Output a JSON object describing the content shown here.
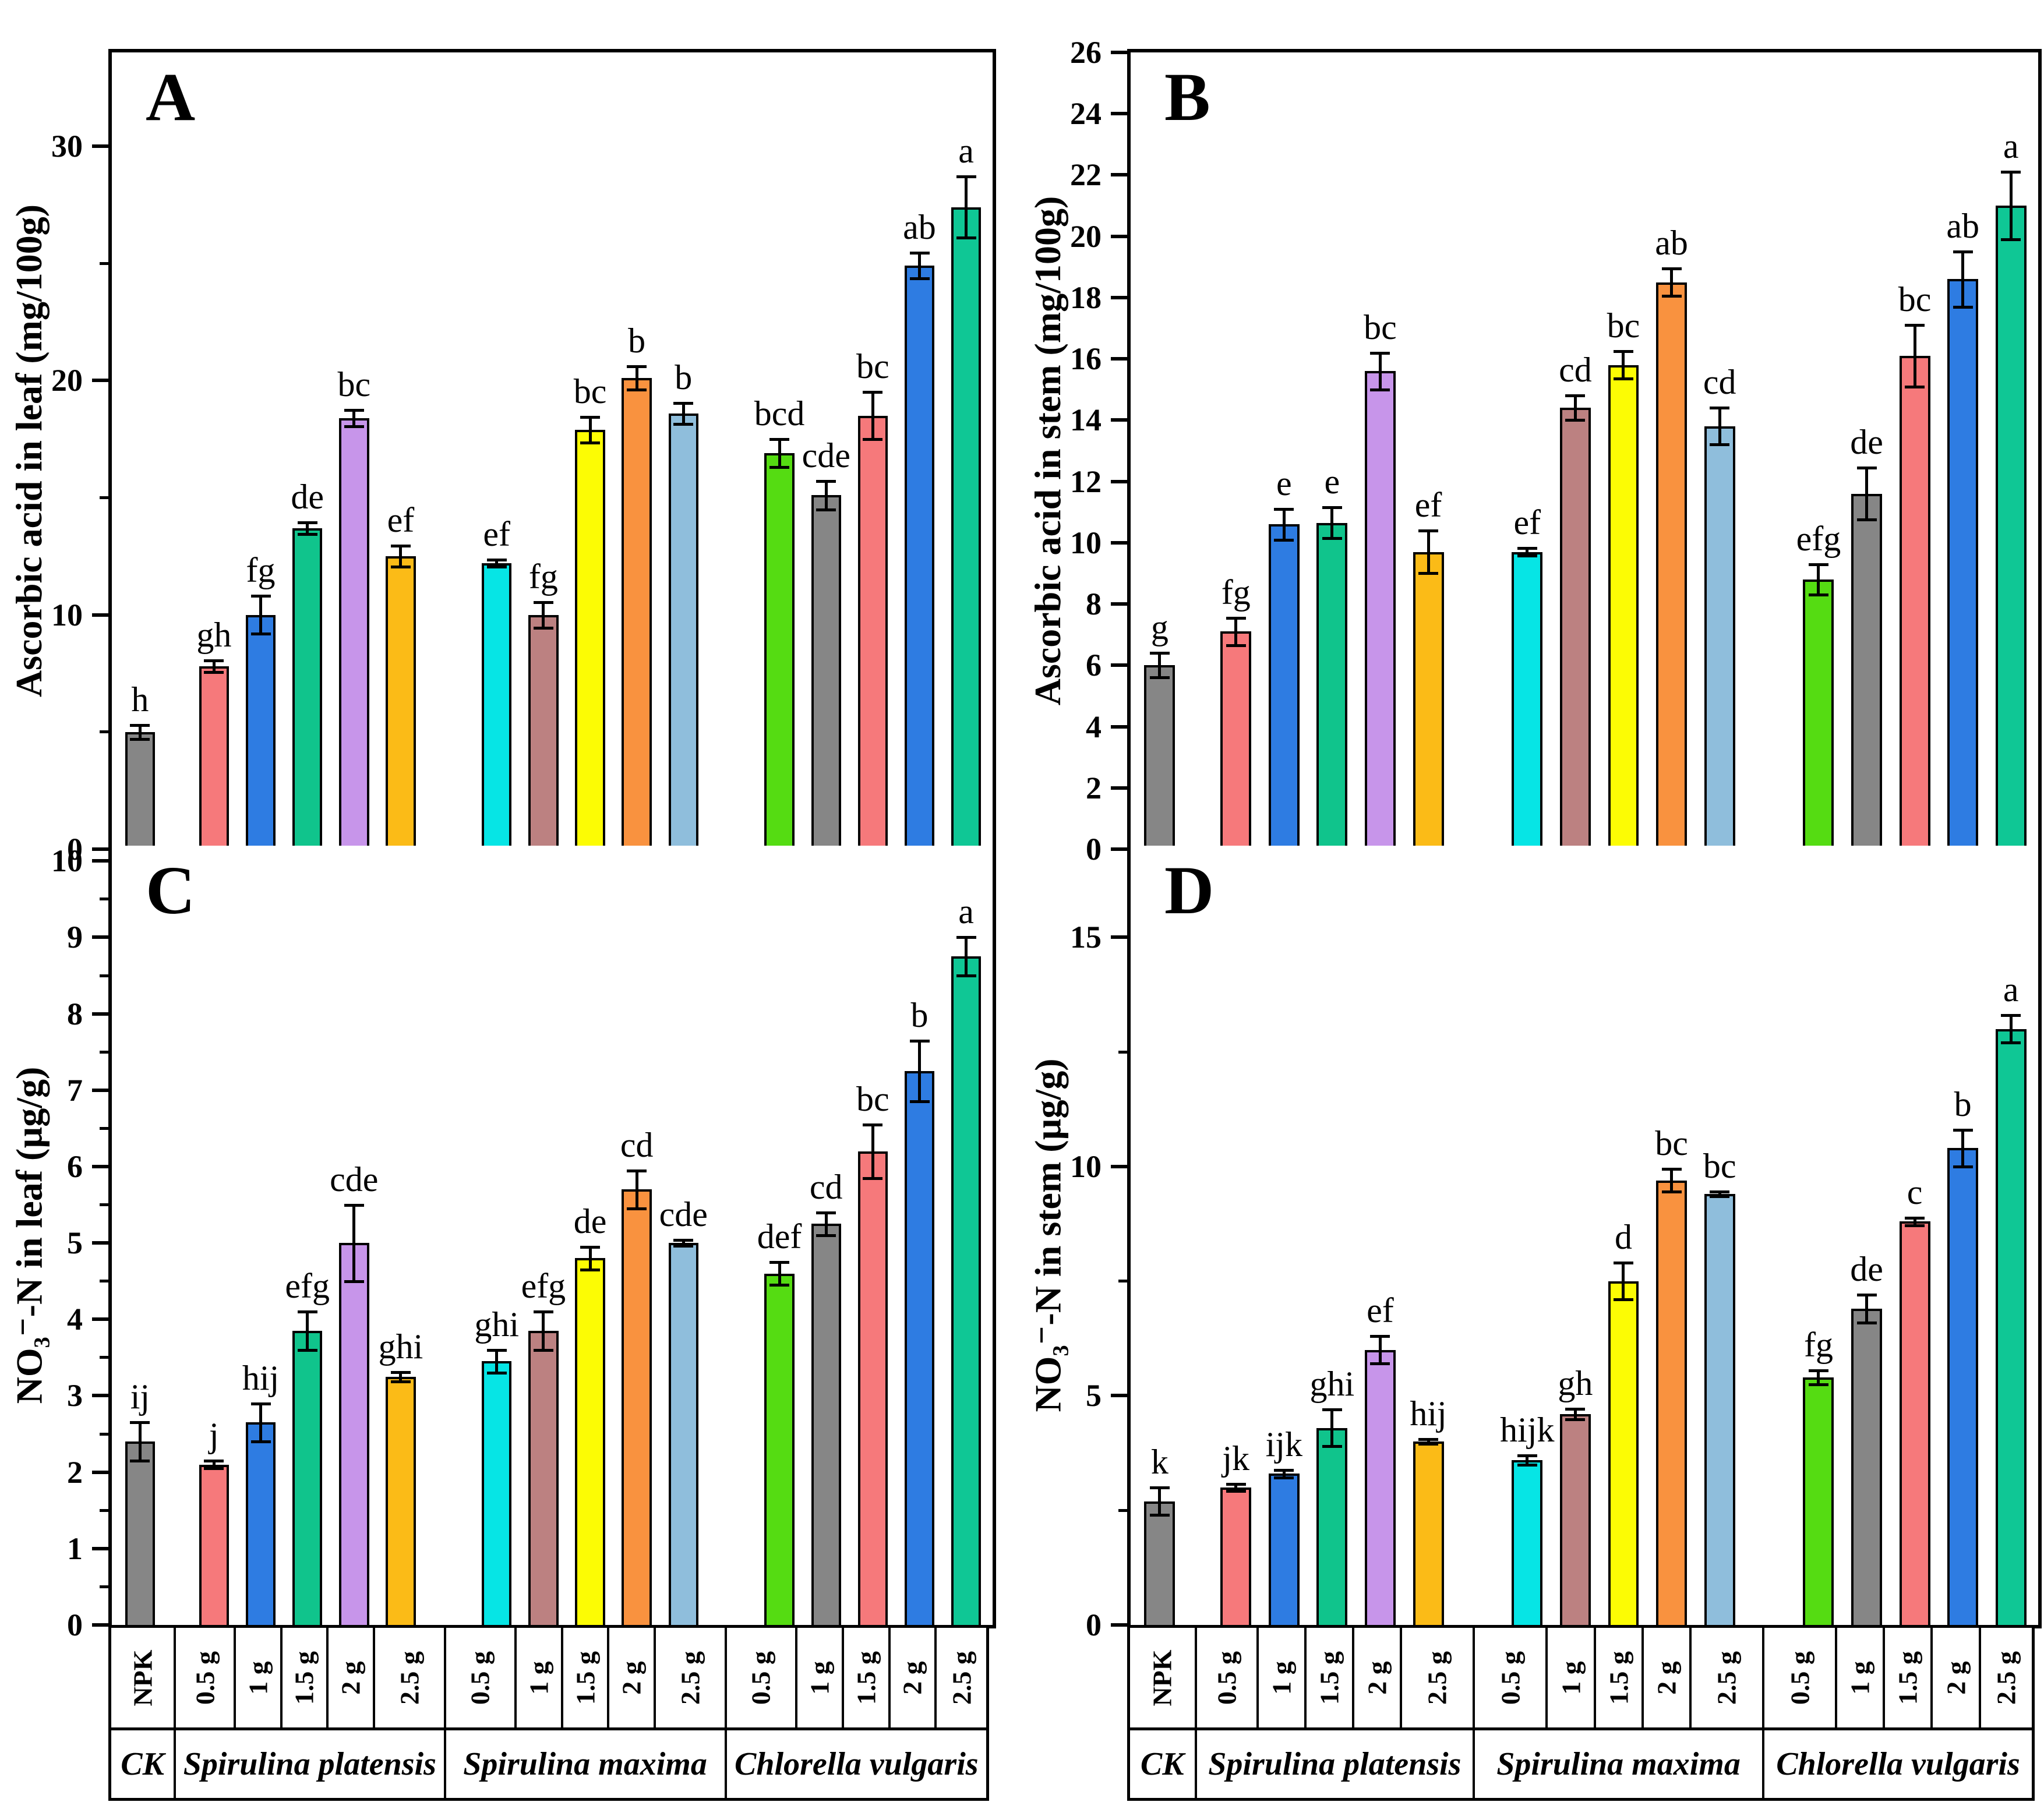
{
  "chart_data": [
    {
      "id": "A",
      "type": "bar",
      "panel_label": "A",
      "ylabel": "Ascorbic acid in leaf (mg/100g)",
      "ylim": [
        0,
        34
      ],
      "yticks_major": [
        0,
        10,
        20,
        30
      ],
      "yticks_minor": [
        5,
        15,
        25
      ],
      "grid": false,
      "categories": [
        "NPK",
        "0.5 g",
        "1 g",
        "1.5 g",
        "2 g",
        "2.5 g",
        "0.5 g",
        "1 g",
        "1.5 g",
        "2 g",
        "2.5 g",
        "0.5 g",
        "1 g",
        "1.5 g",
        "2 g",
        "2.5 g"
      ],
      "values": [
        5.0,
        7.8,
        10.0,
        13.7,
        18.4,
        12.5,
        12.2,
        10.0,
        17.9,
        20.1,
        18.6,
        16.9,
        15.1,
        18.5,
        24.9,
        27.4
      ],
      "errors": [
        0.3,
        0.25,
        0.8,
        0.25,
        0.35,
        0.45,
        0.15,
        0.55,
        0.55,
        0.5,
        0.45,
        0.6,
        0.6,
        1.0,
        0.55,
        1.3
      ],
      "sig_letters": [
        "h",
        "gh",
        "fg",
        "de",
        "bc",
        "ef",
        "ef",
        "fg",
        "bc",
        "b",
        "b",
        "bcd",
        "cde",
        "bc",
        "ab",
        "a"
      ]
    },
    {
      "id": "B",
      "type": "bar",
      "panel_label": "B",
      "ylabel": "Ascorbic acid in stem (mg/100g)",
      "ylim": [
        0,
        26
      ],
      "yticks_major": [
        0,
        2,
        4,
        6,
        8,
        10,
        12,
        14,
        16,
        18,
        20,
        22,
        24,
        26
      ],
      "yticks_minor": [],
      "grid": false,
      "categories": [
        "NPK",
        "0.5 g",
        "1 g",
        "1.5 g",
        "2 g",
        "2.5 g",
        "0.5 g",
        "1 g",
        "1.5 g",
        "2 g",
        "2.5 g",
        "0.5 g",
        "1 g",
        "1.5 g",
        "2 g",
        "2.5 g"
      ],
      "values": [
        6.0,
        7.1,
        10.6,
        10.65,
        15.6,
        9.7,
        9.7,
        14.4,
        15.8,
        18.5,
        13.8,
        8.8,
        11.6,
        16.1,
        18.6,
        21.0
      ],
      "errors": [
        0.4,
        0.45,
        0.5,
        0.5,
        0.6,
        0.7,
        0.12,
        0.4,
        0.45,
        0.45,
        0.6,
        0.5,
        0.85,
        1.0,
        0.9,
        1.1
      ],
      "sig_letters": [
        "g",
        "fg",
        "e",
        "e",
        "bc",
        "ef",
        "ef",
        "cd",
        "bc",
        "ab",
        "cd",
        "efg",
        "de",
        "bc",
        "ab",
        "a"
      ]
    },
    {
      "id": "C",
      "type": "bar",
      "panel_label": "C",
      "ylabel": "NO₃⁻-N in leaf (µg/g)",
      "ylim": [
        0,
        10.2
      ],
      "yticks_major": [
        0,
        1,
        2,
        3,
        4,
        5,
        6,
        7,
        8,
        9,
        10
      ],
      "yticks_minor": [
        0.5,
        1.5,
        2.5,
        3.5,
        4.5,
        5.5,
        6.5,
        7.5,
        8.5,
        9.5
      ],
      "grid": false,
      "categories": [
        "NPK",
        "0.5 g",
        "1 g",
        "1.5 g",
        "2 g",
        "2.5 g",
        "0.5 g",
        "1 g",
        "1.5 g",
        "2 g",
        "2.5 g",
        "0.5 g",
        "1 g",
        "1.5 g",
        "2 g",
        "2.5 g"
      ],
      "values": [
        2.4,
        2.1,
        2.65,
        3.85,
        5.0,
        3.25,
        3.45,
        3.85,
        4.8,
        5.7,
        5.0,
        4.6,
        5.25,
        6.2,
        7.25,
        8.75
      ],
      "errors": [
        0.25,
        0.05,
        0.25,
        0.25,
        0.5,
        0.06,
        0.15,
        0.25,
        0.15,
        0.25,
        0.04,
        0.15,
        0.15,
        0.35,
        0.4,
        0.25
      ],
      "sig_letters": [
        "ij",
        "j",
        "hij",
        "efg",
        "cde",
        "ghi",
        "ghi",
        "efg",
        "de",
        "cd",
        "cde",
        "def",
        "cd",
        "bc",
        "b",
        "a"
      ]
    },
    {
      "id": "D",
      "type": "bar",
      "panel_label": "D",
      "ylabel": "NO₃⁻-N in stem (µg/g)",
      "ylim": [
        0,
        17
      ],
      "yticks_major": [
        0,
        5,
        10,
        15
      ],
      "yticks_minor": [
        2.5,
        7.5,
        12.5
      ],
      "grid": false,
      "categories": [
        "NPK",
        "0.5 g",
        "1 g",
        "1.5 g",
        "2 g",
        "2.5 g",
        "0.5 g",
        "1 g",
        "1.5 g",
        "2 g",
        "2.5 g",
        "0.5 g",
        "1 g",
        "1.5 g",
        "2 g",
        "2.5 g"
      ],
      "values": [
        2.7,
        3.0,
        3.3,
        4.3,
        6.0,
        4.0,
        3.6,
        4.6,
        7.5,
        9.7,
        9.4,
        5.4,
        6.9,
        8.8,
        10.4,
        13.0
      ],
      "errors": [
        0.3,
        0.08,
        0.08,
        0.4,
        0.3,
        0.05,
        0.1,
        0.12,
        0.4,
        0.25,
        0.05,
        0.15,
        0.3,
        0.08,
        0.4,
        0.3
      ],
      "sig_letters": [
        "k",
        "jk",
        "ijk",
        "ghi",
        "ef",
        "hij",
        "hijk",
        "gh",
        "d",
        "bc",
        "bc",
        "fg",
        "de",
        "c",
        "b",
        "a"
      ]
    }
  ],
  "x_axis": {
    "tick_labels": [
      "NPK",
      "0.5 g",
      "1 g",
      "1.5 g",
      "2 g",
      "2.5 g",
      "0.5 g",
      "1 g",
      "1.5 g",
      "2 g",
      "2.5 g",
      "0.5 g",
      "1 g",
      "1.5 g",
      "2 g",
      "2.5 g"
    ],
    "groups": [
      {
        "label": "CK",
        "span": 1
      },
      {
        "label": "Spirulina platensis",
        "span": 5
      },
      {
        "label": "Spirulina maxima",
        "span": 5
      },
      {
        "label": "Chlorella vulgaris",
        "span": 5
      }
    ]
  },
  "bar_colors": [
    "#868686",
    "#F6797B",
    "#2E7CE2",
    "#10C48C",
    "#C795EA",
    "#FBBB17",
    "#06E5E5",
    "#BC8181",
    "#FCFC04",
    "#F9923F",
    "#8FBEDC",
    "#55DC12",
    "#868686",
    "#F6797B",
    "#2E7CE2",
    "#0FC795"
  ],
  "error_bar_color": "#000000",
  "frame_color": "#000000"
}
